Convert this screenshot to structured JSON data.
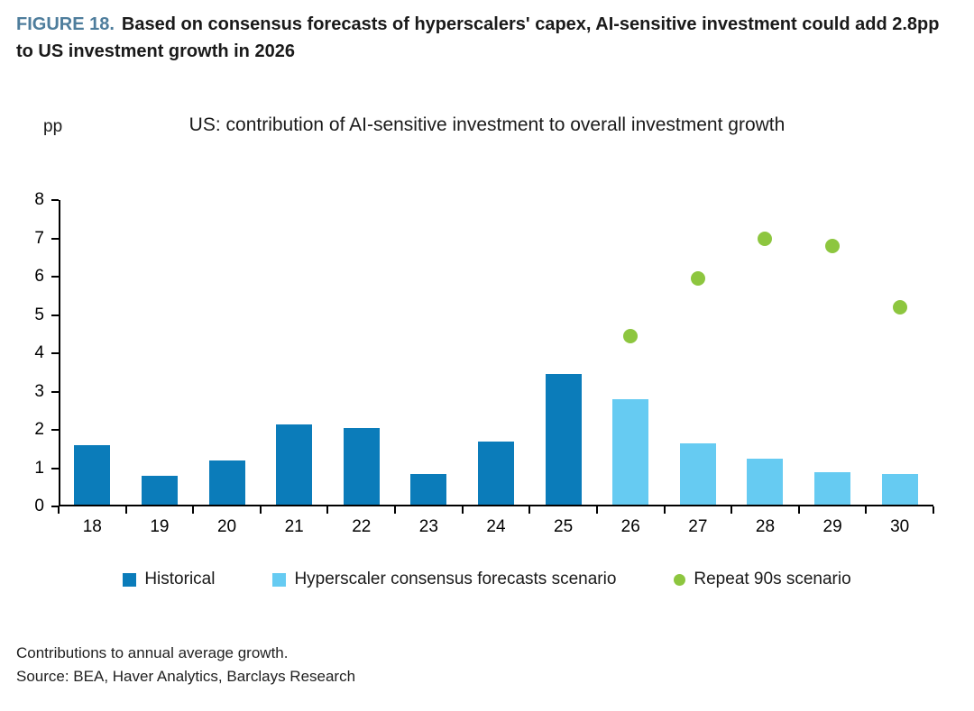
{
  "figure_caption": {
    "label": "FIGURE 18.",
    "text": "Based on consensus forecasts of hyperscalers' capex, AI-sensitive investment could add 2.8pp to US investment growth in 2026",
    "label_color": "#4e7d9c"
  },
  "chart_data": {
    "type": "bar",
    "title": "US: contribution of AI-sensitive investment to overall investment growth",
    "ylabel": "pp",
    "xlabel": "",
    "ylim": [
      0,
      8
    ],
    "yticks": [
      0,
      1,
      2,
      3,
      4,
      5,
      6,
      7,
      8
    ],
    "grid": false,
    "legend_position": "bottom",
    "categories": [
      "18",
      "19",
      "20",
      "21",
      "22",
      "23",
      "24",
      "25",
      "26",
      "27",
      "28",
      "29",
      "30"
    ],
    "series": [
      {
        "name": "Historical",
        "type": "bar",
        "color": "#0b7cba",
        "values": [
          1.6,
          0.8,
          1.2,
          2.15,
          2.05,
          0.85,
          1.7,
          3.45,
          null,
          null,
          null,
          null,
          null
        ]
      },
      {
        "name": "Hyperscaler consensus forecasts scenario",
        "type": "bar",
        "color": "#66cbf2",
        "values": [
          null,
          null,
          null,
          null,
          null,
          null,
          null,
          null,
          2.8,
          1.65,
          1.25,
          0.9,
          0.85
        ]
      },
      {
        "name": "Repeat 90s scenario",
        "type": "scatter",
        "color": "#8dc63f",
        "values": [
          null,
          null,
          null,
          null,
          null,
          null,
          null,
          null,
          4.45,
          5.95,
          7.0,
          6.8,
          5.2
        ]
      }
    ]
  },
  "footnotes": {
    "line1": "Contributions to annual average growth.",
    "line2": "Source: BEA, Haver Analytics, Barclays Research"
  }
}
